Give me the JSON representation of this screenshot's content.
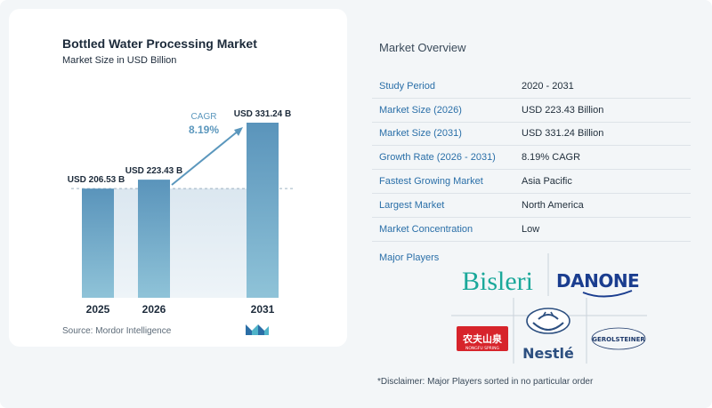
{
  "chart_data": {
    "type": "bar",
    "title": "Bottled Water Processing Market",
    "subtitle": "Market Size in USD Billion",
    "categories": [
      "2025",
      "2026",
      "2031"
    ],
    "values": [
      206.53,
      223.43,
      331.24
    ],
    "value_labels": [
      "USD 206.53 B",
      "USD 223.43 B",
      "USD 331.24 B"
    ],
    "cagr_label": "CAGR",
    "cagr_value": "8.19%",
    "bar_color": "#5b97bd",
    "grid": false,
    "source": "Source:  Mordor Intelligence"
  },
  "overview": {
    "title": "Market Overview",
    "rows": [
      {
        "label": "Study Period",
        "value": "2020 - 2031"
      },
      {
        "label": "Market Size (2026)",
        "value": "USD 223.43 Billion"
      },
      {
        "label": "Market Size (2031)",
        "value": "USD 331.24 Billion"
      },
      {
        "label": "Growth Rate (2026 - 2031)",
        "value": "8.19% CAGR"
      },
      {
        "label": "Fastest Growing Market",
        "value": "Asia Pacific"
      },
      {
        "label": "Largest Market",
        "value": "North America"
      },
      {
        "label": "Market Concentration",
        "value": "Low"
      }
    ],
    "players_title": "Major Players",
    "players": [
      "Bisleri",
      "DANONE",
      "农夫山泉",
      "NONGFU SPRING",
      "Nestlé",
      "GEROLSTEINER"
    ],
    "disclaimer": "*Disclaimer: Major Players sorted in no particular order"
  }
}
